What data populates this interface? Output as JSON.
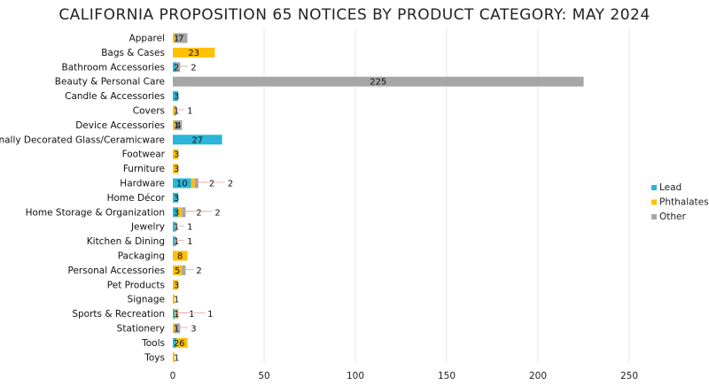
{
  "chart_data": {
    "type": "bar",
    "orientation": "horizontal",
    "stacked": true,
    "title": "CALIFORNIA PROPOSITION 65 NOTICES BY PRODUCT CATEGORY: MAY 2024",
    "xlim": [
      0,
      250
    ],
    "x_ticks": [
      "0",
      "50",
      "100",
      "150",
      "200",
      "250"
    ],
    "grid": true,
    "legend_position": "right",
    "categories": [
      "Apparel",
      "Bags & Cases",
      "Bathroom Accessories",
      "Beauty & Personal Care",
      "Candle & Accessories",
      "Covers",
      "Device Accessories",
      "Externally Decorated Glass/Ceramicware",
      "Footwear",
      "Furniture",
      "Hardware",
      "Home Décor",
      "Home Storage & Organization",
      "Jewelry",
      "Kitchen & Dining",
      "Packaging",
      "Personal Accessories",
      "Pet Products",
      "Signage",
      "Sports & Recreation",
      "Stationery",
      "Tools",
      "Toys"
    ],
    "series": [
      {
        "name": "Lead",
        "color": "#29b6d8",
        "values": [
          0,
          0,
          2,
          0,
          3,
          0,
          0,
          27,
          0,
          0,
          10,
          3,
          3,
          1,
          1,
          0,
          0,
          0,
          0,
          1,
          0,
          2,
          0
        ]
      },
      {
        "name": "Phthalates",
        "color": "#ffc000",
        "values": [
          1,
          23,
          0,
          0,
          0,
          1,
          1,
          0,
          3,
          3,
          2,
          0,
          2,
          0,
          0,
          8,
          5,
          3,
          1,
          1,
          1,
          6,
          1
        ]
      },
      {
        "name": "Other",
        "color": "#a6a6a6",
        "values": [
          7,
          0,
          2,
          225,
          0,
          1,
          4,
          0,
          0,
          0,
          2,
          0,
          2,
          1,
          1,
          0,
          2,
          0,
          0,
          1,
          3,
          0,
          0
        ]
      }
    ]
  }
}
